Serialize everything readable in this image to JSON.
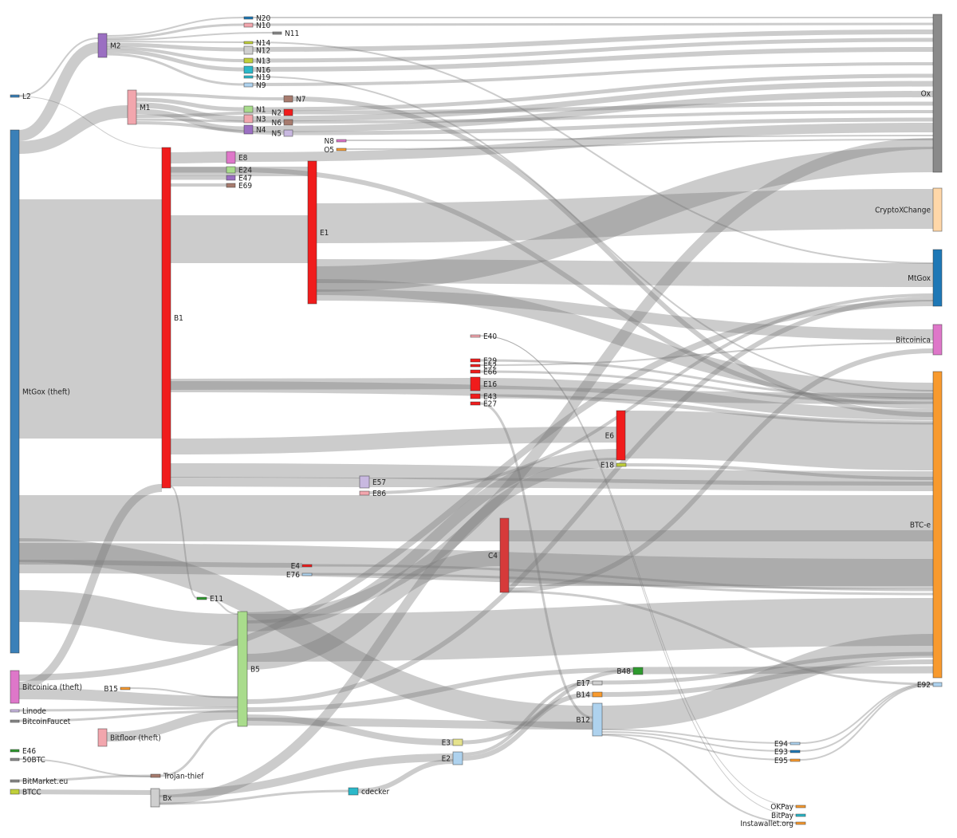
{
  "diagram_type": "sankey",
  "colors": {
    "blue": "#3a80b8",
    "purple": "#9b6fc2",
    "pink": "#f2a6ad",
    "red": "#f01c1c",
    "darkred": "#d63a3a",
    "orange": "#f89a2e",
    "magenta": "#de77c9",
    "gray": "#8a8a8a",
    "peach": "#ffd7a8",
    "green": "#a9dc8c",
    "lightgray": "#cfcfcf",
    "yellow": "#e5e28c",
    "cyan": "#2bb8c9",
    "brown": "#a77b6e",
    "lavender": "#c8b8e0",
    "darkgreen": "#2f9a2f",
    "lightblue": "#aed2ee",
    "steel": "#1e78b6",
    "olive": "#c0cf3a"
  },
  "nodes": [
    {
      "id": "MtGox (theft)",
      "label": "MtGox (theft)",
      "color": "blue"
    },
    {
      "id": "L2",
      "label": "L2",
      "color": "blue"
    },
    {
      "id": "Bitcoinica (theft)",
      "label": "Bitcoinica (theft)",
      "color": "magenta"
    },
    {
      "id": "Linode",
      "label": "Linode",
      "color": "lavender"
    },
    {
      "id": "BitcoinFaucet",
      "label": "BitcoinFaucet",
      "color": "gray"
    },
    {
      "id": "E46",
      "label": "E46",
      "color": "darkgreen"
    },
    {
      "id": "50BTC",
      "label": "50BTC",
      "color": "gray"
    },
    {
      "id": "BitMarket.eu",
      "label": "BitMarket.eu",
      "color": "gray"
    },
    {
      "id": "BTCC",
      "label": "BTCC",
      "color": "olive"
    },
    {
      "id": "M2",
      "label": "M2",
      "color": "purple"
    },
    {
      "id": "M1",
      "label": "M1",
      "color": "pink"
    },
    {
      "id": "B1",
      "label": "B1",
      "color": "red"
    },
    {
      "id": "B15",
      "label": "B15",
      "color": "orange"
    },
    {
      "id": "Bitfloor (theft)",
      "label": "Bitfloor (theft)",
      "color": "pink"
    },
    {
      "id": "Trojan-thief",
      "label": "Trojan-thief",
      "color": "brown"
    },
    {
      "id": "Bx",
      "label": "Bx",
      "color": "lightgray"
    },
    {
      "id": "E11",
      "label": "E11",
      "color": "darkgreen"
    },
    {
      "id": "B5",
      "label": "B5",
      "color": "green"
    },
    {
      "id": "E8",
      "label": "E8",
      "color": "magenta"
    },
    {
      "id": "E24",
      "label": "E24",
      "color": "green"
    },
    {
      "id": "E47",
      "label": "E47",
      "color": "purple"
    },
    {
      "id": "E69",
      "label": "E69",
      "color": "brown"
    },
    {
      "id": "N20",
      "label": "N20",
      "color": "steel"
    },
    {
      "id": "N10",
      "label": "N10",
      "color": "pink"
    },
    {
      "id": "N14",
      "label": "N14",
      "color": "olive"
    },
    {
      "id": "N12",
      "label": "N12",
      "color": "lightgray"
    },
    {
      "id": "N13",
      "label": "N13",
      "color": "olive"
    },
    {
      "id": "N16",
      "label": "N16",
      "color": "cyan"
    },
    {
      "id": "N19",
      "label": "N19",
      "color": "cyan"
    },
    {
      "id": "N9",
      "label": "N9",
      "color": "lightblue"
    },
    {
      "id": "N1",
      "label": "N1",
      "color": "green"
    },
    {
      "id": "N3",
      "label": "N3",
      "color": "pink"
    },
    {
      "id": "N4",
      "label": "N4",
      "color": "purple"
    },
    {
      "id": "N11",
      "label": "N11",
      "color": "gray"
    },
    {
      "id": "N7",
      "label": "N7",
      "color": "brown"
    },
    {
      "id": "N2",
      "label": "N2",
      "color": "red"
    },
    {
      "id": "N6",
      "label": "N6",
      "color": "brown"
    },
    {
      "id": "N5",
      "label": "N5",
      "color": "lavender"
    },
    {
      "id": "N8",
      "label": "N8",
      "color": "magenta"
    },
    {
      "id": "O5",
      "label": "O5",
      "color": "orange"
    },
    {
      "id": "E1",
      "label": "E1",
      "color": "red"
    },
    {
      "id": "E4",
      "label": "E4",
      "color": "red"
    },
    {
      "id": "E76",
      "label": "E76",
      "color": "lightblue"
    },
    {
      "id": "E57",
      "label": "E57",
      "color": "lavender"
    },
    {
      "id": "E86",
      "label": "E86",
      "color": "pink"
    },
    {
      "id": "cdecker",
      "label": "cdecker",
      "color": "cyan"
    },
    {
      "id": "E40",
      "label": "E40",
      "color": "pink"
    },
    {
      "id": "E29",
      "label": "E29",
      "color": "red"
    },
    {
      "id": "E52",
      "label": "E52",
      "color": "red"
    },
    {
      "id": "E66",
      "label": "E66",
      "color": "red"
    },
    {
      "id": "E16",
      "label": "E16",
      "color": "red"
    },
    {
      "id": "E43",
      "label": "E43",
      "color": "red"
    },
    {
      "id": "E27",
      "label": "E27",
      "color": "red"
    },
    {
      "id": "C4",
      "label": "C4",
      "color": "darkred"
    },
    {
      "id": "E3",
      "label": "E3",
      "color": "yellow"
    },
    {
      "id": "E2",
      "label": "E2",
      "color": "lightblue"
    },
    {
      "id": "E17",
      "label": "E17",
      "color": "lightgray"
    },
    {
      "id": "E6",
      "label": "E6",
      "color": "red"
    },
    {
      "id": "E18",
      "label": "E18",
      "color": "olive"
    },
    {
      "id": "B48",
      "label": "B48",
      "color": "darkgreen"
    },
    {
      "id": "B14",
      "label": "B14",
      "color": "orange"
    },
    {
      "id": "B12",
      "label": "B12",
      "color": "lightblue"
    },
    {
      "id": "E94",
      "label": "E94",
      "color": "lightblue"
    },
    {
      "id": "E93",
      "label": "E93",
      "color": "steel"
    },
    {
      "id": "E95",
      "label": "E95",
      "color": "orange"
    },
    {
      "id": "OKPay",
      "label": "OKPay",
      "color": "orange"
    },
    {
      "id": "BitPay",
      "label": "BitPay",
      "color": "cyan"
    },
    {
      "id": "Instawallet.org",
      "label": "Instawallet.org",
      "color": "orange"
    },
    {
      "id": "Ox",
      "label": "Ox",
      "color": "gray"
    },
    {
      "id": "CryptoXChange",
      "label": "CryptoXChange",
      "color": "peach"
    },
    {
      "id": "MtGox",
      "label": "MtGox",
      "color": "steel"
    },
    {
      "id": "Bitcoinica",
      "label": "Bitcoinica",
      "color": "magenta"
    },
    {
      "id": "BTC-e",
      "label": "BTC-e",
      "color": "orange"
    },
    {
      "id": "E92",
      "label": "E92",
      "color": "lightblue"
    }
  ]
}
